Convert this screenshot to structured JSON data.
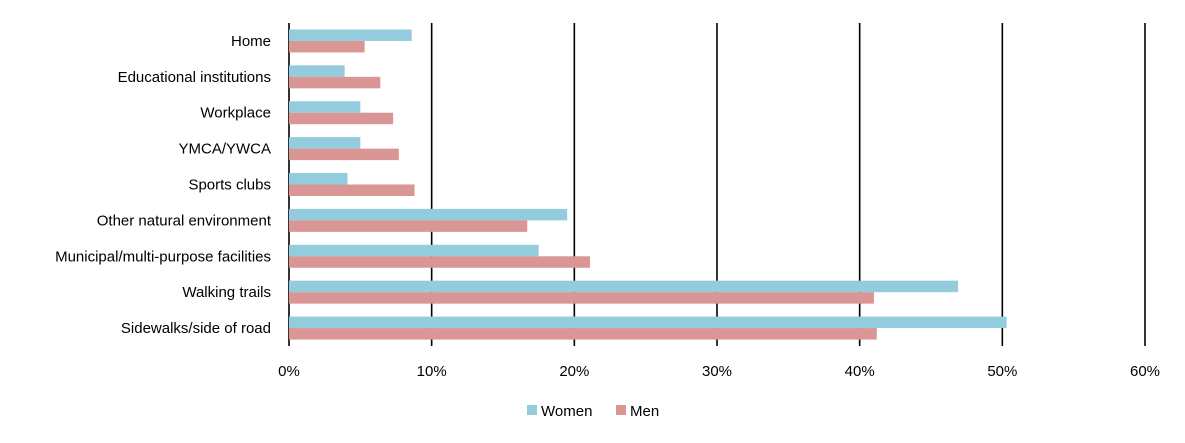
{
  "chart_data": {
    "type": "bar",
    "orientation": "horizontal",
    "categories": [
      "Home",
      "Educational institutions",
      "Workplace",
      "YMCA/YWCA",
      "Sports clubs",
      "Other natural environment",
      "Municipal/multi-purpose facilities",
      "Walking trails",
      "Sidewalks/side of road"
    ],
    "series": [
      {
        "name": "Women",
        "color": "#93CDDD",
        "values": [
          8.6,
          3.9,
          5.0,
          5.0,
          4.1,
          19.5,
          17.5,
          46.9,
          50.3
        ]
      },
      {
        "name": "Men",
        "color": "#DA9694",
        "values": [
          5.3,
          6.4,
          7.3,
          7.7,
          8.8,
          16.7,
          21.1,
          41.0,
          41.2
        ]
      }
    ],
    "xlim": [
      0,
      60
    ],
    "xticks": [
      "0%",
      "10%",
      "20%",
      "30%",
      "40%",
      "50%",
      "60%"
    ],
    "xlabel": "",
    "ylabel": "",
    "grid": "vertical",
    "legend": "bottom"
  }
}
